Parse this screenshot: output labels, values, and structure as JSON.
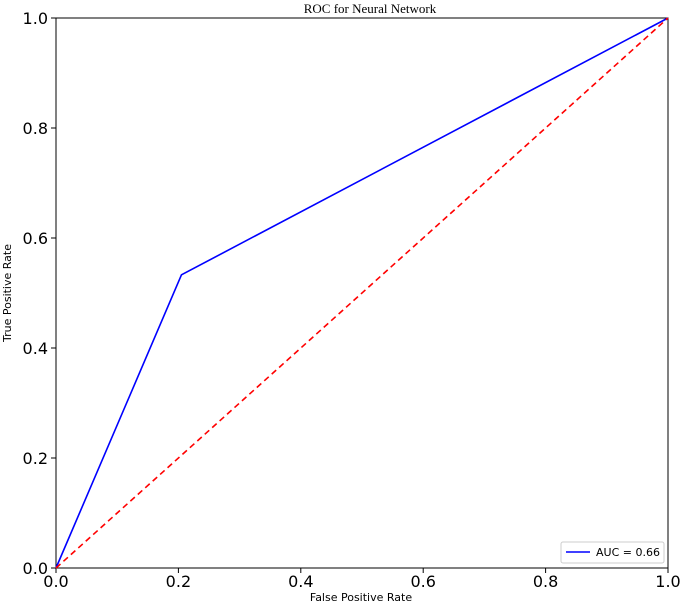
{
  "chart_data": {
    "type": "line",
    "title": "ROC for Neural Network",
    "xlabel": "False Positive Rate",
    "ylabel": "True Positive Rate",
    "xlim": [
      0.0,
      1.0
    ],
    "ylim": [
      0.0,
      1.0
    ],
    "xticks": [
      0.0,
      0.2,
      0.4,
      0.6,
      0.8,
      1.0
    ],
    "yticks": [
      0.0,
      0.2,
      0.4,
      0.6,
      0.8,
      1.0
    ],
    "xtick_labels": [
      "0.0",
      "0.2",
      "0.4",
      "0.6",
      "0.8",
      "1.0"
    ],
    "ytick_labels": [
      "0.0",
      "0.2",
      "0.4",
      "0.6",
      "0.8",
      "1.0"
    ],
    "grid": false,
    "legend_position": "lower-right",
    "series": [
      {
        "name": "AUC = 0.66",
        "x": [
          0.0,
          0.205,
          1.0
        ],
        "y": [
          0.0,
          0.533,
          1.0
        ],
        "color": "#0000ff",
        "style": "solid"
      },
      {
        "x": [
          0.0,
          1.0
        ],
        "y": [
          0.0,
          1.0
        ],
        "color": "#ff0000",
        "style": "dashed"
      }
    ]
  }
}
